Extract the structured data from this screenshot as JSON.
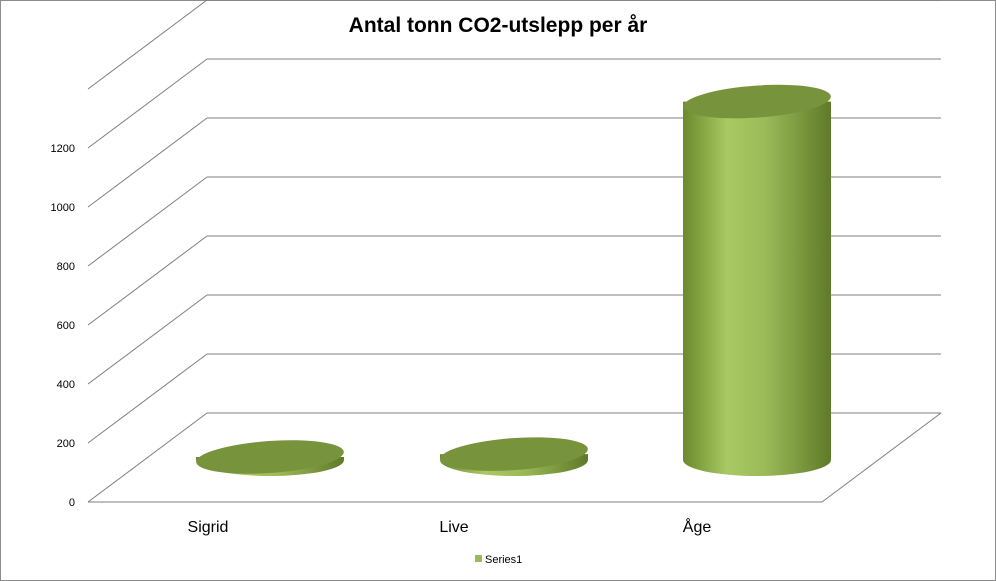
{
  "chart_data": {
    "type": "bar",
    "style": "3d-cylinder",
    "title": "Antal tonn CO2-utslepp per år",
    "categories": [
      "Sigrid",
      "Live",
      "Åge"
    ],
    "series": [
      {
        "name": "Series1",
        "values": [
          4,
          20,
          1215
        ]
      }
    ],
    "yticks": [
      "0",
      "200",
      "400",
      "600",
      "800",
      "1000",
      "1200"
    ],
    "ylim": [
      0,
      1400
    ],
    "grid": true,
    "legend_position": "bottom",
    "colors": {
      "bar_body": "#9bbb59",
      "bar_top": "#77933c",
      "bar_shadow": "#5f7530",
      "gridline": "#7f7f7f"
    }
  }
}
